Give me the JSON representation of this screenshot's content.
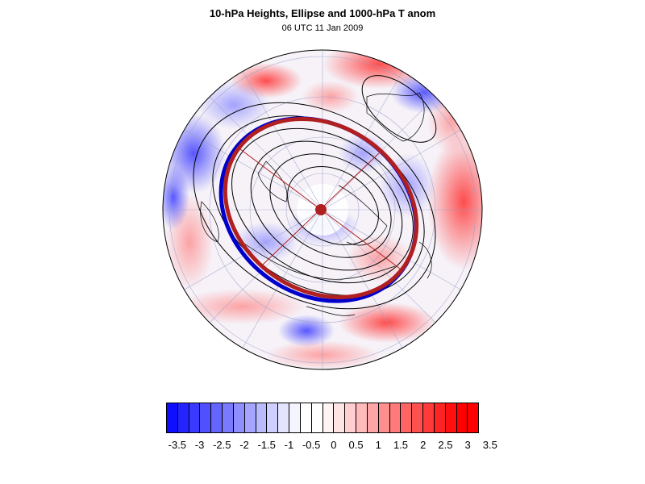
{
  "title": "10-hPa Heights, Ellipse and 1000-hPa T anom",
  "subtitle": "06 UTC 11 Jan 2009",
  "colorbar": {
    "labels": [
      "-3.5",
      "-3",
      "-2.5",
      "-2",
      "-1.5",
      "-1",
      "-0.5",
      "0",
      "0.5",
      "1",
      "1.5",
      "2",
      "2.5",
      "3",
      "3.5"
    ],
    "colors": [
      "#0f0fff",
      "#2424ff",
      "#3a3aff",
      "#5050ff",
      "#6464ff",
      "#7a7aff",
      "#8f8fff",
      "#a5a5ff",
      "#baba ff",
      "#cfcfff",
      "#e4e4ff",
      "#f4f4ff",
      "#ffffff",
      "#ffffff",
      "#fff4f4",
      "#ffe4e4",
      "#ffcfcf",
      "#ffbaba",
      "#ffa5a5",
      "#ff8f8f",
      "#ff7a7a",
      "#ff6464",
      "#ff5050",
      "#ff3a3a",
      "#ff2424",
      "#ff1010",
      "#ff0000",
      "#ff0000"
    ]
  },
  "map": {
    "projection": "north-polar-stereographic",
    "fields": [
      "1000-hPa temperature anomaly (shaded)",
      "10-hPa geopotential height (contours)",
      "vortex ellipse (red)"
    ],
    "accent_colors": {
      "ellipse": "#b02020",
      "ellipse_shadow": "#0000cc",
      "contour": "#000000"
    }
  }
}
